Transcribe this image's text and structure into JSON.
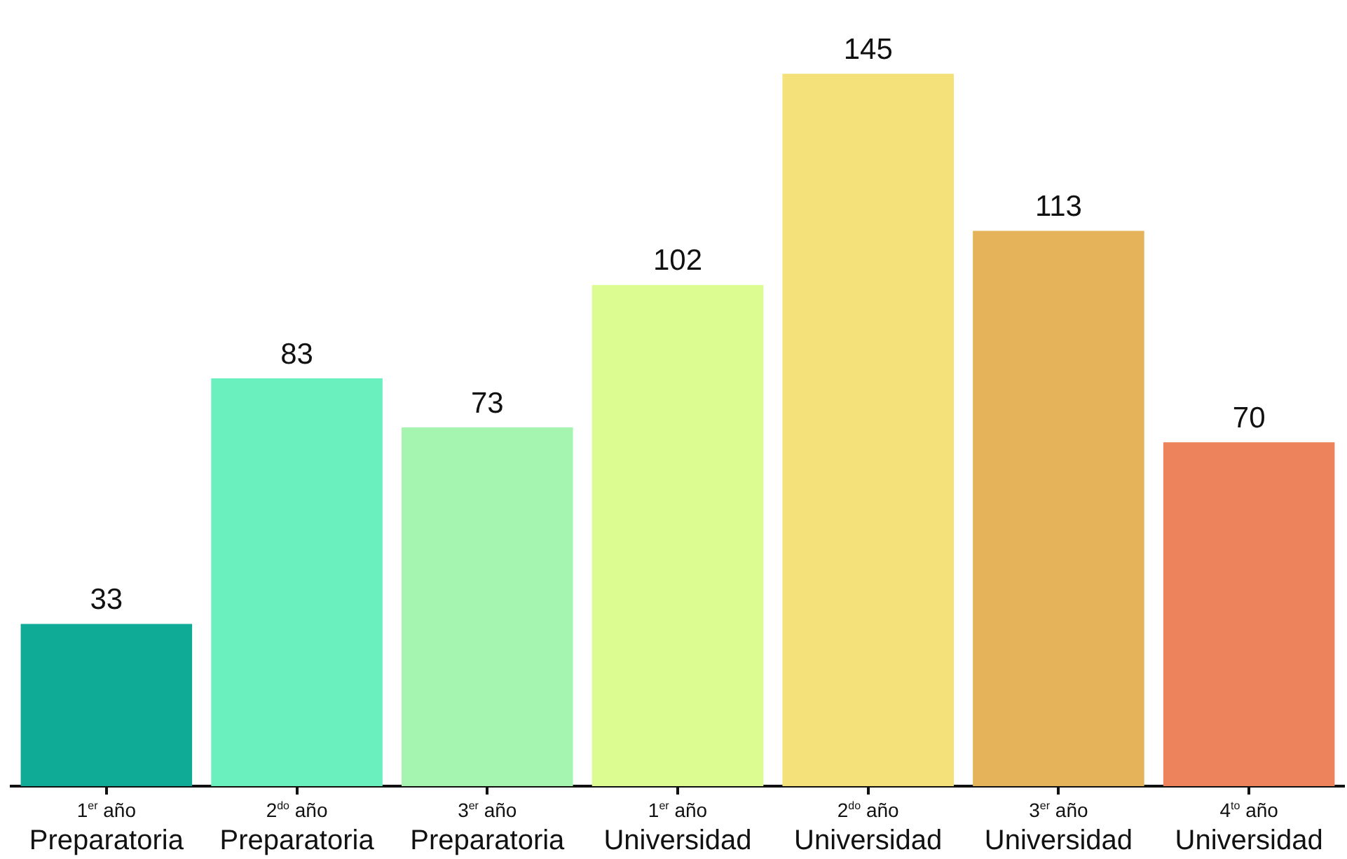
{
  "chart_data": {
    "type": "bar",
    "categories": [
      "1$^{er}$ año\nPreparatoria",
      "2$^{do}$ año\nPreparatoria",
      "3$^{er}$ año\nPreparatoria",
      "1$^{er}$ año\nUniversidad",
      "2$^{do}$ año\nUniversidad",
      "3$^{er}$ año\nUniversidad",
      "4$^{to}$ año\nUniversidad"
    ],
    "values": [
      33,
      83,
      73,
      102,
      145,
      113,
      70
    ],
    "colors": [
      "#0fab96",
      "#6aefbf",
      "#a5f5b1",
      "#dcfc92",
      "#f5e17a",
      "#e5b45a",
      "#ed835d"
    ],
    "data_labels": true
  }
}
